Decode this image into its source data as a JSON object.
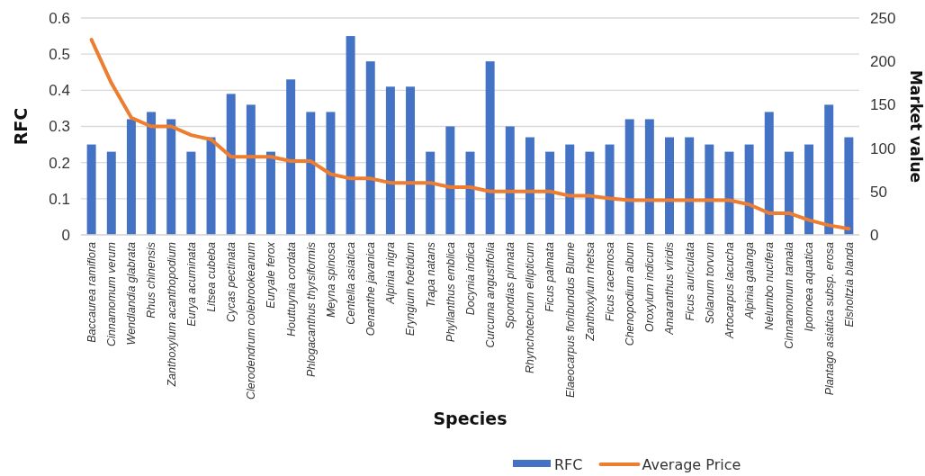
{
  "chart_data": {
    "type": "bar",
    "xlabel": "Species",
    "ylabel": "RFC",
    "y2label": "Market value",
    "categories": [
      "Baccaurea ramiflora",
      "Cinnamomum verum",
      "Wendlandia glabrata",
      "Rhus chinensis",
      "Zanthoxylum acanthopodium",
      "Eurya acuminata",
      "Litsea cubeba",
      "Cycas pectinata",
      "Clerodendrum colebrookeanum",
      "Euryale ferox",
      "Houttuynia cordata",
      "Phlogacanthus thyrsiformis",
      "Meyna spinosa",
      "Centella asiatica",
      "Oenanthe javanica",
      "Alpinia nigra",
      "Eryngium foetidum",
      "Trapa natans",
      "Phyllanthus emblica",
      "Docynia indica",
      "Curcuma angustifolia",
      "Spondias pinnata",
      "Rhynchotechum ellipticum",
      "Ficus palmata",
      "Elaeocarpus floribundus Blume",
      "Zanthoxylum rhetsa",
      "Ficus racemosa",
      "Chenopodium album",
      "Oroxylum indicum",
      "Amaranthus viridis",
      "Ficus auriculata",
      "Solanum torvum",
      "Artocarpus lacucha",
      "Alpinia galanga",
      "Nelumbo nucifera",
      "Cinnamomum tamala",
      "Ipomoea aquatica",
      "Plantago asiatica subsp. erosa",
      "Elsholtzia blanda"
    ],
    "series": [
      {
        "name": "RFC",
        "color": "#4472c4",
        "values": [
          0.25,
          0.23,
          0.32,
          0.34,
          0.32,
          0.23,
          0.27,
          0.39,
          0.36,
          0.23,
          0.43,
          0.34,
          0.34,
          0.55,
          0.48,
          0.41,
          0.41,
          0.23,
          0.3,
          0.23,
          0.48,
          0.3,
          0.27,
          0.23,
          0.25,
          0.23,
          0.25,
          0.32,
          0.32,
          0.27,
          0.27,
          0.25,
          0.23,
          0.25,
          0.34,
          0.23,
          0.25,
          0.36,
          0.27
        ]
      },
      {
        "name": "Average Price",
        "type": "line",
        "axis": "y2",
        "color": "#ed7d31",
        "values": [
          225,
          175,
          135,
          125,
          125,
          115,
          110,
          90,
          90,
          90,
          85,
          85,
          70,
          65,
          65,
          60,
          60,
          60,
          55,
          55,
          50,
          50,
          50,
          50,
          45,
          45,
          42,
          40,
          40,
          40,
          40,
          40,
          40,
          35,
          25,
          25,
          17,
          11,
          7
        ]
      }
    ],
    "ylim": [
      0,
      0.6
    ],
    "yticks": [
      {
        "value": 0,
        "label": "0"
      },
      0.1,
      0.2,
      0.3,
      0.4,
      0.5,
      0.6
    ],
    "y2lim": [
      0,
      250
    ],
    "y2ticks": [
      0,
      50,
      100,
      150,
      200,
      250
    ],
    "grid": "y",
    "legend": "bottom",
    "line_style": "solid",
    "marker": "none"
  }
}
